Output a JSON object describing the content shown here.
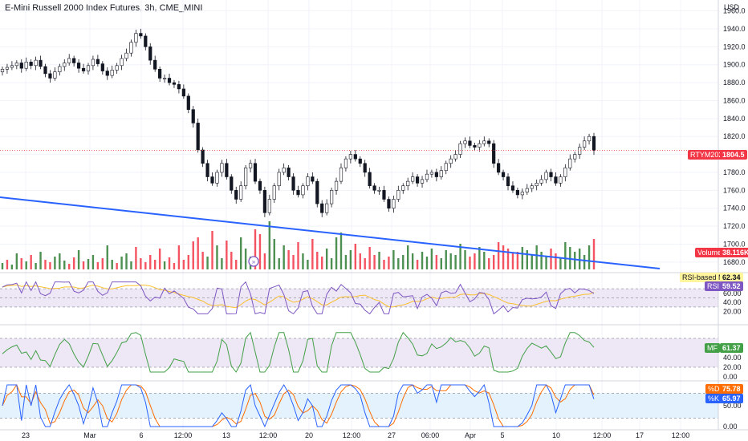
{
  "header": {
    "title": "E-Mini Russell 2000 Index Futures, 3h, CME_MINI",
    "currency": "USD"
  },
  "colors": {
    "up": "#26a69a",
    "down": "#ef5350",
    "volume_up": "#2e7d32",
    "volume_down": "#f23645",
    "trendline": "#2962ff",
    "rsi": "#7e57c2",
    "rsi_ma": "#fbc02d",
    "mfi": "#43a047",
    "stoch_k": "#2962ff",
    "stoch_d": "#ff6d00",
    "band_purple": "#ede7f6",
    "band_blue": "#e3f2fd"
  },
  "price_tag": {
    "label": "RTYM2023",
    "value": "1804.5"
  },
  "volume_tag": {
    "label": "Volume",
    "value": "38.116K"
  },
  "rsi_ma_tag": {
    "label": "RSI-based MA",
    "value": "62.34"
  },
  "rsi_tag": {
    "label": "RSI",
    "value": "59.52"
  },
  "mf_tag": {
    "label": "MF",
    "value": "61.37"
  },
  "stoch_d_tag": {
    "label": "%D",
    "value": "75.78"
  },
  "stoch_k_tag": {
    "label": "%K",
    "value": "65.97"
  },
  "chart_data": [
    {
      "type": "candlestick",
      "title": "E-Mini Russell 2000 Index Futures, 3h, CME_MINI",
      "ylim": [
        1670,
        1965
      ],
      "y_ticks": [
        "1960.0",
        "1940.0",
        "1920.0",
        "1900.0",
        "1880.0",
        "1860.0",
        "1840.0",
        "1820.0",
        "1800.0",
        "1780.0",
        "1760.0",
        "1740.0",
        "1720.0",
        "1700.0",
        "1680.0"
      ],
      "x_ticks": [
        "23",
        "Mar",
        "6",
        "12:00",
        "13",
        "12:00",
        "20",
        "12:00",
        "27",
        "06:00",
        "Apr",
        "5",
        "10",
        "12:00",
        "17",
        "12:00"
      ],
      "last_price": 1804.5,
      "grid": true,
      "close_series": [
        1895,
        1897,
        1899,
        1902,
        1896,
        1903,
        1899,
        1905,
        1898,
        1890,
        1885,
        1892,
        1898,
        1902,
        1907,
        1902,
        1896,
        1893,
        1899,
        1906,
        1901,
        1893,
        1888,
        1894,
        1899,
        1907,
        1913,
        1925,
        1935,
        1932,
        1920,
        1905,
        1895,
        1885,
        1885,
        1880,
        1878,
        1873,
        1865,
        1850,
        1835,
        1805,
        1790,
        1775,
        1768,
        1780,
        1790,
        1775,
        1760,
        1750,
        1765,
        1785,
        1790,
        1770,
        1760,
        1735,
        1750,
        1765,
        1780,
        1785,
        1775,
        1760,
        1755,
        1765,
        1775,
        1770,
        1745,
        1735,
        1745,
        1760,
        1770,
        1785,
        1795,
        1800,
        1795,
        1790,
        1780,
        1765,
        1760,
        1760,
        1750,
        1740,
        1750,
        1760,
        1765,
        1770,
        1775,
        1768,
        1772,
        1778,
        1780,
        1775,
        1782,
        1790,
        1795,
        1800,
        1812,
        1815,
        1810,
        1808,
        1812,
        1815,
        1812,
        1790,
        1780,
        1775,
        1765,
        1760,
        1755,
        1758,
        1762,
        1765,
        1768,
        1772,
        1780,
        1775,
        1768,
        1775,
        1785,
        1795,
        1800,
        1808,
        1815,
        1820,
        1804.5
      ]
    },
    {
      "type": "bar",
      "title": "Volume",
      "last_value": "38.116K",
      "values": [
        8,
        12,
        6,
        20,
        14,
        10,
        18,
        8,
        22,
        12,
        9,
        16,
        20,
        11,
        7,
        15,
        24,
        10,
        13,
        18,
        9,
        14,
        30,
        12,
        8,
        16,
        20,
        10,
        28,
        14,
        9,
        18,
        12,
        26,
        10,
        15,
        8,
        30,
        12,
        18,
        35,
        40,
        22,
        16,
        48,
        30,
        14,
        36,
        22,
        12,
        40,
        26,
        16,
        50,
        44,
        20,
        60,
        38,
        14,
        30,
        24,
        18,
        34,
        20,
        12,
        38,
        22,
        16,
        26,
        14,
        40,
        46,
        18,
        24,
        32,
        20,
        14,
        28,
        18,
        22,
        12,
        16,
        24,
        14,
        18,
        30,
        20,
        12,
        22,
        16,
        26,
        18,
        14,
        24,
        20,
        18,
        32,
        24,
        16,
        20,
        28,
        22,
        14,
        18,
        34,
        30,
        26,
        20,
        22,
        28,
        24,
        18,
        30,
        22,
        16,
        26,
        20,
        14,
        34,
        28,
        22,
        26,
        18,
        30,
        38
      ],
      "up": [
        1,
        0,
        1,
        1,
        0,
        1,
        0,
        1,
        1,
        0,
        0,
        1,
        1,
        1,
        0,
        0,
        1,
        0,
        1,
        1,
        0,
        0,
        1,
        1,
        0,
        1,
        1,
        1,
        0,
        0,
        0,
        0,
        0,
        0,
        1,
        0,
        0,
        0,
        0,
        0,
        0,
        0,
        0,
        1,
        0,
        1,
        1,
        0,
        0,
        0,
        1,
        1,
        1,
        0,
        0,
        0,
        1,
        1,
        1,
        1,
        0,
        0,
        0,
        1,
        1,
        0,
        0,
        0,
        1,
        1,
        1,
        1,
        1,
        1,
        0,
        0,
        0,
        0,
        0,
        1,
        0,
        0,
        1,
        1,
        1,
        1,
        1,
        0,
        1,
        1,
        1,
        0,
        1,
        1,
        1,
        1,
        1,
        1,
        0,
        0,
        1,
        1,
        0,
        0,
        0,
        0,
        0,
        0,
        0,
        1,
        1,
        1,
        1,
        1,
        1,
        0,
        0,
        1,
        1,
        1,
        1,
        1,
        1,
        1,
        0
      ]
    },
    {
      "type": "line",
      "title": "RSI",
      "ylim": [
        0,
        100
      ],
      "y_ticks": [
        "60.00",
        "40.00",
        "20.00"
      ],
      "bands": [
        30,
        50,
        70
      ],
      "series": [
        {
          "name": "RSI",
          "last": 59.52
        },
        {
          "name": "RSI-based MA",
          "last": 62.34
        }
      ]
    },
    {
      "type": "line",
      "title": "MF",
      "ylim": [
        0,
        100
      ],
      "y_ticks": [
        "60.00",
        "40.00",
        "20.00",
        "0.00"
      ],
      "bands": [
        20,
        80
      ],
      "series": [
        {
          "name": "MF",
          "last": 61.37
        }
      ]
    },
    {
      "type": "line",
      "title": "Stochastic",
      "ylim": [
        0,
        100
      ],
      "y_ticks": [
        "50.00",
        "0.00"
      ],
      "bands": [
        20,
        80
      ],
      "series": [
        {
          "name": "%K",
          "last": 65.97
        },
        {
          "name": "%D",
          "last": 75.78
        }
      ]
    }
  ]
}
